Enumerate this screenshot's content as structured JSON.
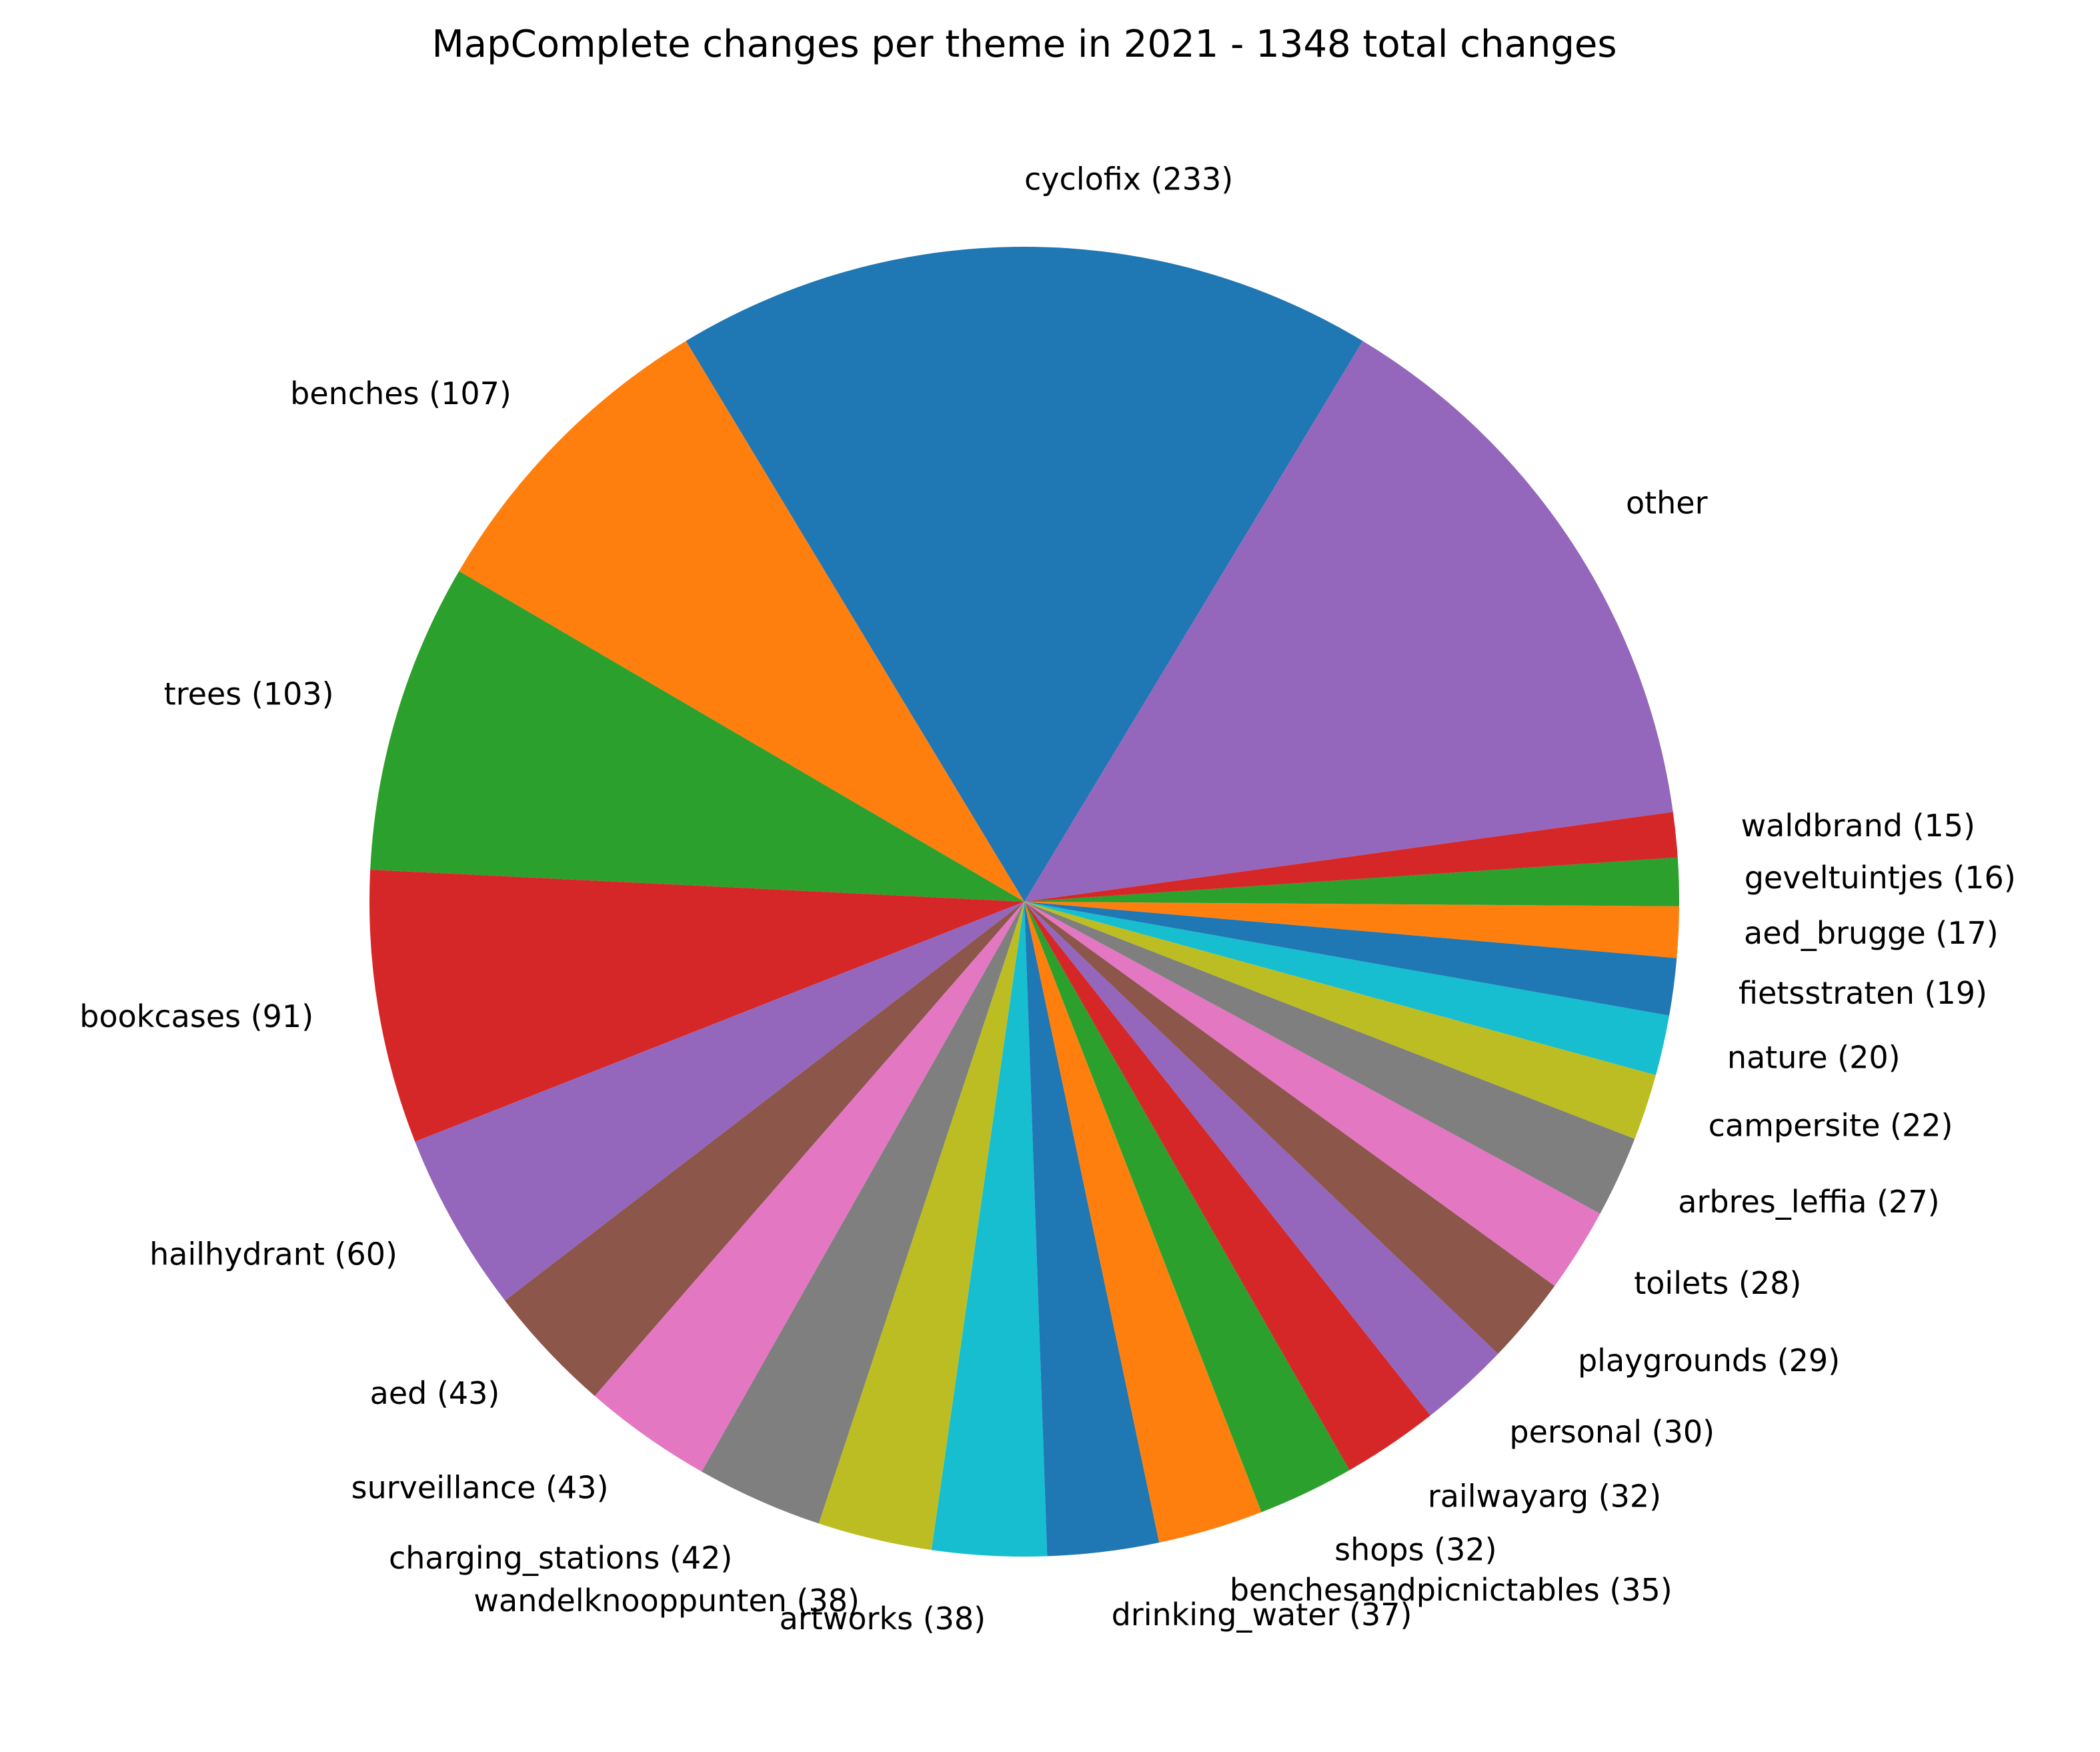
{
  "chart_data": {
    "type": "pie",
    "title": "MapComplete changes per theme in 2021 - 1348 total changes",
    "categories": [
      "cyclofix (233)",
      "benches (107)",
      "trees (103)",
      "bookcases (91)",
      "hailhydrant (60)",
      "aed (43)",
      "surveillance (43)",
      "charging_stations (42)",
      "wandelknooppunten (38)",
      "artworks (38)",
      "drinking_water (37)",
      "benchesandpicnictables (35)",
      "shops (32)",
      "railwayarg (32)",
      "personal (30)",
      "playgrounds (29)",
      "toilets (28)",
      "arbres_leffia (27)",
      "campersite (22)",
      "nature (20)",
      "fietsstraten (19)",
      "aed_brugge (17)",
      "geveltuintjes (16)",
      "waldbrand (15)",
      "other"
    ],
    "values": [
      233,
      107,
      103,
      91,
      60,
      43,
      43,
      42,
      38,
      38,
      37,
      35,
      32,
      32,
      30,
      29,
      28,
      27,
      22,
      20,
      19,
      17,
      16,
      15,
      191
    ],
    "colors": [
      "#1f77b4",
      "#ff7f0e",
      "#2ca02c",
      "#d62728",
      "#9467bd",
      "#8c564b",
      "#e377c2",
      "#7f7f7f",
      "#bcbd22",
      "#17becf",
      "#1f77b4",
      "#ff7f0e",
      "#2ca02c",
      "#d62728",
      "#9467bd",
      "#8c564b",
      "#e377c2",
      "#7f7f7f",
      "#bcbd22",
      "#17becf",
      "#1f77b4",
      "#ff7f0e",
      "#2ca02c",
      "#d62728",
      "#9467bd"
    ]
  }
}
